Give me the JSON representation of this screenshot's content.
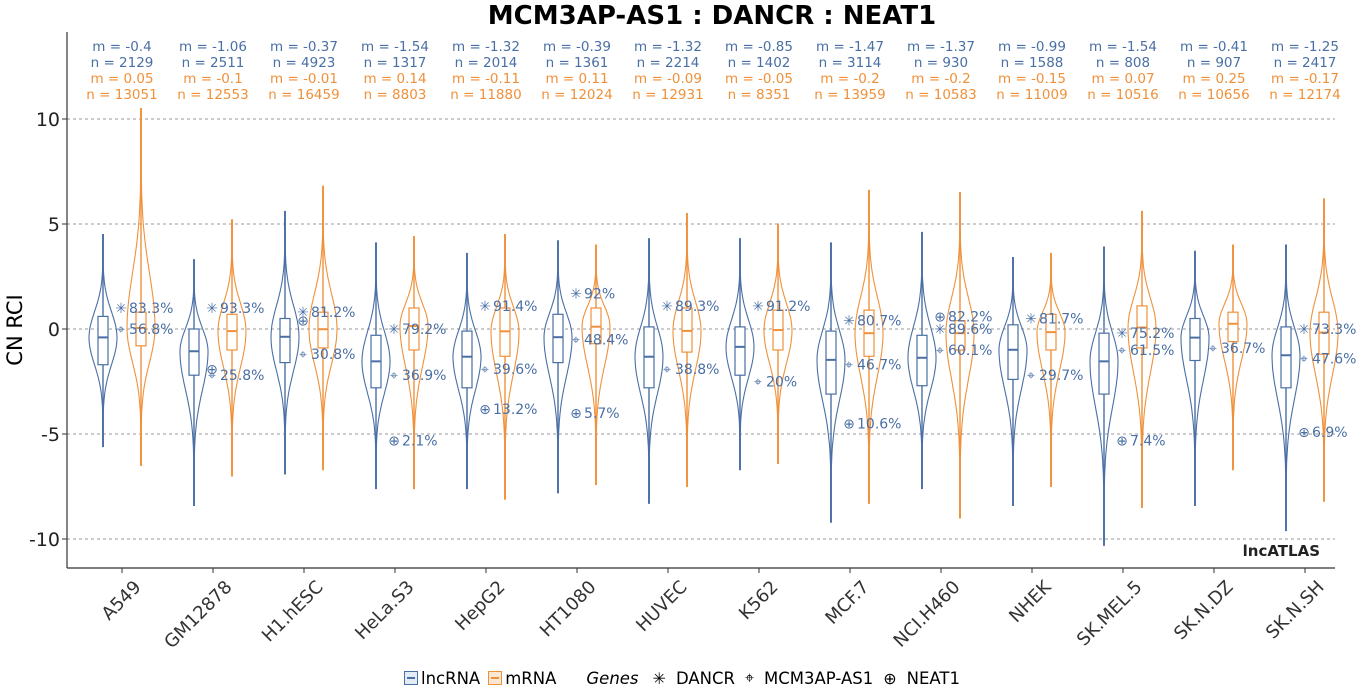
{
  "chart_data": {
    "type": "violin",
    "title": "MCM3AP-AS1 : DANCR : NEAT1",
    "ylabel": "CN RCI",
    "xlabel": "",
    "ylim": [
      -11,
      14
    ],
    "yticks": [
      10,
      5,
      0,
      -5,
      -10
    ],
    "ytick_labels": [
      "10",
      "5",
      "0",
      "-5",
      "-10"
    ],
    "grid": "horizontal dashed",
    "watermark": "lncATLAS",
    "colors": {
      "lncRNA": "#4a6fa5",
      "mRNA": "#f0913a"
    },
    "categories": [
      "A549",
      "GM12878",
      "H1.hESC",
      "HeLa.S3",
      "HepG2",
      "HT1080",
      "HUVEC",
      "K562",
      "MCF.7",
      "NCI.H460",
      "NHEK",
      "SK.MEL.5",
      "SK.N.DZ",
      "SK.N.SH"
    ],
    "lncRNA": {
      "mean_label": [
        "m = -0.4",
        "m = -1.06",
        "m = -0.37",
        "m = -1.54",
        "m = -1.32",
        "m = -0.39",
        "m = -1.32",
        "m = -0.85",
        "m = -1.47",
        "m = -1.37",
        "m = -0.99",
        "m = -1.54",
        "m = -0.41",
        "m = -1.25"
      ],
      "n_label": [
        "n = 2129",
        "n = 2511",
        "n = 4923",
        "n = 1317",
        "n = 2014",
        "n = 1361",
        "n = 2214",
        "n = 1402",
        "n = 3114",
        "n = 930",
        "n = 1588",
        "n = 808",
        "n = 907",
        "n = 2417"
      ],
      "means": [
        -0.4,
        -1.06,
        -0.37,
        -1.54,
        -1.32,
        -0.39,
        -1.32,
        -0.85,
        -1.47,
        -1.37,
        -0.99,
        -1.54,
        -0.41,
        -1.25
      ],
      "q1": [
        -1.7,
        -2.2,
        -1.6,
        -2.8,
        -2.8,
        -1.6,
        -2.8,
        -2.2,
        -3.1,
        -2.7,
        -2.4,
        -3.1,
        -1.5,
        -2.8
      ],
      "q3": [
        0.6,
        0.0,
        0.5,
        -0.3,
        -0.1,
        0.7,
        0.1,
        0.1,
        -0.1,
        -0.3,
        0.2,
        -0.2,
        0.5,
        0.1
      ],
      "min": [
        -5.6,
        -8.4,
        -6.9,
        -7.6,
        -7.6,
        -7.8,
        -8.3,
        -6.7,
        -9.2,
        -7.6,
        -8.4,
        -10.3,
        -8.4,
        -9.6
      ],
      "max": [
        4.5,
        3.3,
        5.6,
        4.1,
        3.6,
        4.2,
        4.3,
        4.3,
        4.1,
        4.6,
        3.4,
        3.9,
        3.7,
        4.0
      ]
    },
    "mRNA": {
      "mean_label": [
        "m = 0.05",
        "m = -0.1",
        "m = -0.01",
        "m = 0.14",
        "m = -0.11",
        "m = 0.11",
        "m = -0.09",
        "m = -0.05",
        "m = -0.2",
        "m = -0.2",
        "m = -0.15",
        "m = 0.07",
        "m = 0.25",
        "m = -0.17"
      ],
      "n_label": [
        "n = 13051",
        "n = 12553",
        "n = 16459",
        "n = 8803",
        "n = 11880",
        "n = 12024",
        "n = 12931",
        "n = 8351",
        "n = 13959",
        "n = 10583",
        "n = 11009",
        "n = 10516",
        "n = 10656",
        "n = 12174"
      ],
      "means": [
        0.05,
        -0.1,
        -0.01,
        0.14,
        -0.11,
        0.11,
        -0.09,
        -0.05,
        -0.2,
        -0.2,
        -0.15,
        0.07,
        0.25,
        -0.17
      ],
      "q1": [
        -0.8,
        -1.0,
        -0.9,
        -1.0,
        -1.3,
        -0.7,
        -1.1,
        -1.0,
        -1.3,
        -1.0,
        -1.0,
        -0.9,
        -0.6,
        -1.2
      ],
      "q3": [
        0.8,
        0.7,
        0.8,
        1.0,
        1.0,
        1.0,
        1.0,
        0.9,
        0.9,
        0.4,
        0.7,
        1.1,
        0.8,
        0.8
      ],
      "min": [
        -6.5,
        -7.0,
        -6.7,
        -7.6,
        -8.1,
        -7.4,
        -7.5,
        -6.4,
        -8.3,
        -9.0,
        -7.5,
        -8.5,
        -6.7,
        -8.2
      ],
      "max": [
        10.5,
        5.2,
        6.8,
        4.4,
        4.5,
        4.0,
        5.5,
        5.0,
        6.6,
        6.5,
        3.6,
        5.6,
        4.0,
        6.2
      ]
    },
    "genes": [
      {
        "name": "DANCR",
        "symbol": "✳",
        "values": [
          1.0,
          1.0,
          0.8,
          0.0,
          1.1,
          1.7,
          1.1,
          1.1,
          0.4,
          0.0,
          0.5,
          -0.2,
          null,
          0.0
        ],
        "percent_labels": [
          "83.3%",
          "93.3%",
          "81.2%",
          "79.2%",
          "91.4%",
          "92%",
          "89.3%",
          "91.2%",
          "80.7%",
          "89.6%",
          "81.7%",
          "75.2%",
          "",
          "73.3%"
        ]
      },
      {
        "name": "MCM3AP-AS1",
        "symbol": "⌖",
        "values": [
          0.0,
          -2.2,
          -1.2,
          -2.2,
          -1.9,
          -0.5,
          -1.9,
          -2.5,
          -1.7,
          -1.0,
          -2.2,
          -1.0,
          -0.9,
          -1.4
        ],
        "percent_labels": [
          "56.8%",
          "25.8%",
          "30.8%",
          "36.9%",
          "39.6%",
          "48.4%",
          "38.8%",
          "20%",
          "46.7%",
          "60.1%",
          "29.7%",
          "61.5%",
          "36.7%",
          "47.6%"
        ]
      },
      {
        "name": "NEAT1",
        "symbol": "⊕",
        "values": [
          null,
          -1.9,
          0.4,
          -5.3,
          -3.8,
          -4.0,
          null,
          null,
          -4.5,
          0.6,
          null,
          -5.3,
          null,
          -4.9
        ],
        "percent_labels": [
          "",
          "",
          "",
          "2.1%",
          "13.2%",
          "5.7%",
          "",
          "",
          "10.6%",
          "82.2%",
          "",
          "7.4%",
          "",
          "6.9%"
        ]
      }
    ]
  },
  "legend": {
    "lncRNA_label": "lncRNA",
    "mRNA_label": "mRNA",
    "genes_title": "Genes",
    "dancr_symbol": "✳",
    "dancr_label": "DANCR",
    "mcm_symbol": "⌖",
    "mcm_label": "MCM3AP-AS1",
    "neat_symbol": "⊕",
    "neat_label": "NEAT1"
  }
}
